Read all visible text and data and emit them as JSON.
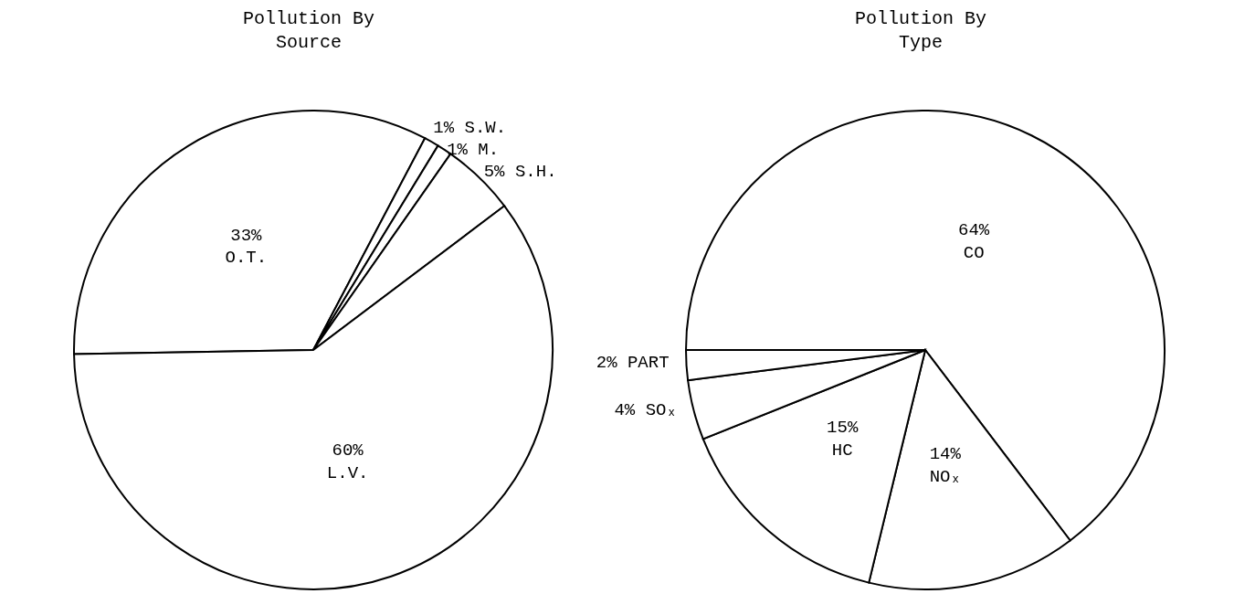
{
  "chart_data": [
    {
      "type": "pie",
      "title": "Pollution By Source",
      "categories": [
        "O.T.",
        "S.W.",
        "M.",
        "S.H.",
        "L.V."
      ],
      "values": [
        33,
        1,
        1,
        5,
        60
      ],
      "value_labels": [
        "33%",
        "1%",
        "1%",
        "5%",
        "60%"
      ],
      "colors": [
        "#ffffff",
        "#ffffff",
        "#ffffff",
        "#ffffff",
        "#ffffff"
      ]
    },
    {
      "type": "pie",
      "title": "Pollution By Type",
      "categories": [
        "CO",
        "NOₓ",
        "HC",
        "SOₓ",
        "PART"
      ],
      "values": [
        64,
        14,
        15,
        4,
        2
      ],
      "value_labels": [
        "64%",
        "14%",
        "15%",
        "4%",
        "2%"
      ],
      "colors": [
        "#ffffff",
        "#ffffff",
        "#ffffff",
        "#ffffff",
        "#ffffff"
      ]
    }
  ]
}
